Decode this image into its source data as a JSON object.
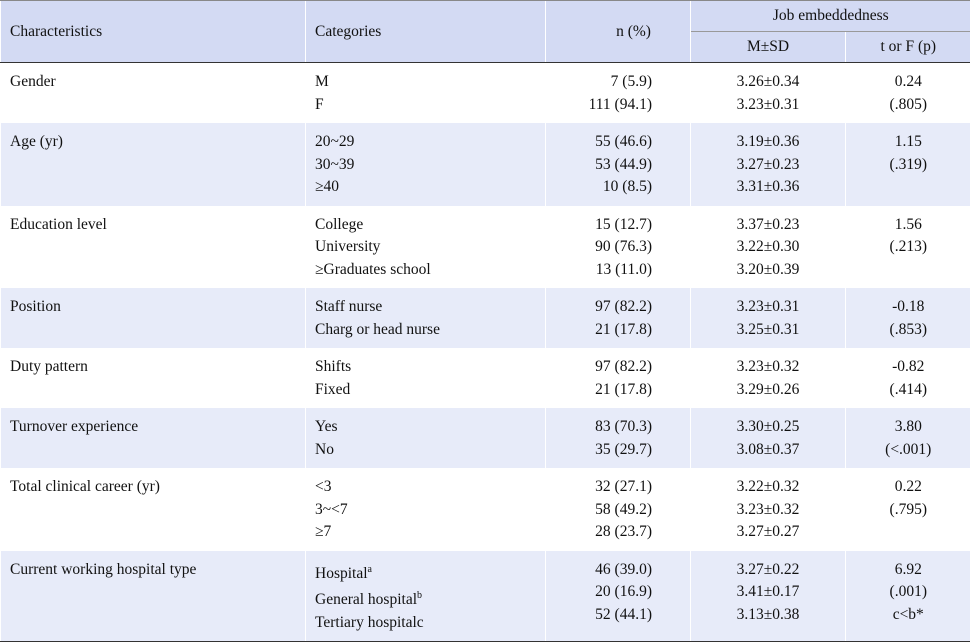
{
  "header": {
    "characteristics": "Characteristics",
    "categories": "Categories",
    "n": "n (%)",
    "job": "Job embeddedness",
    "msd": "M±SD",
    "stat": "t or F (p)"
  },
  "groups": [
    {
      "characteristic": "Gender",
      "items": [
        {
          "category": "M",
          "n": "7 (5.9)",
          "msd": "3.26±0.34"
        },
        {
          "category": "F",
          "n": "111 (94.1)",
          "msd": "3.23±0.31"
        }
      ],
      "stat": [
        "0.24",
        "(.805)"
      ]
    },
    {
      "characteristic": "Age (yr)",
      "items": [
        {
          "category": "20~29",
          "n": "55 (46.6)",
          "msd": "3.19±0.36"
        },
        {
          "category": "30~39",
          "n": "53 (44.9)",
          "msd": "3.27±0.23"
        },
        {
          "category": "≥40",
          "n": "10 (8.5)",
          "msd": "3.31±0.36"
        }
      ],
      "stat": [
        "1.15",
        "(.319)"
      ]
    },
    {
      "characteristic": "Education level",
      "items": [
        {
          "category": "College",
          "n": "15 (12.7)",
          "msd": "3.37±0.23"
        },
        {
          "category": "University",
          "n": "90 (76.3)",
          "msd": "3.22±0.30"
        },
        {
          "category": "≥Graduates school",
          "n": "13 (11.0)",
          "msd": "3.20±0.39"
        }
      ],
      "stat": [
        "1.56",
        "(.213)"
      ]
    },
    {
      "characteristic": "Position",
      "items": [
        {
          "category": "Staff nurse",
          "n": "97 (82.2)",
          "msd": "3.23±0.31"
        },
        {
          "category": "Charg or head nurse",
          "n": "21 (17.8)",
          "msd": "3.25±0.31"
        }
      ],
      "stat": [
        "-0.18",
        "(.853)"
      ]
    },
    {
      "characteristic": "Duty pattern",
      "items": [
        {
          "category": "Shifts",
          "n": "97 (82.2)",
          "msd": "3.23±0.32"
        },
        {
          "category": "Fixed",
          "n": "21 (17.8)",
          "msd": "3.29±0.26"
        }
      ],
      "stat": [
        "-0.82",
        "(.414)"
      ]
    },
    {
      "characteristic": "Turnover experience",
      "items": [
        {
          "category": "Yes",
          "n": "83 (70.3)",
          "msd": "3.30±0.25"
        },
        {
          "category": "No",
          "n": "35 (29.7)",
          "msd": "3.08±0.37"
        }
      ],
      "stat": [
        "3.80",
        "(<.001)"
      ]
    },
    {
      "characteristic": "Total clinical career (yr)",
      "items": [
        {
          "category": "<3",
          "n": "32 (27.1)",
          "msd": "3.22±0.32"
        },
        {
          "category": "3~<7",
          "n": "58 (49.2)",
          "msd": "3.23±0.32"
        },
        {
          "category": "≥7",
          "n": "28 (23.7)",
          "msd": "3.27±0.27"
        }
      ],
      "stat": [
        "0.22",
        "(.795)"
      ]
    },
    {
      "characteristic": "Current working hospital type",
      "items": [
        {
          "category": "Hospital",
          "sup": "a",
          "n": "46 (39.0)",
          "msd": "3.27±0.22"
        },
        {
          "category": "General hospital",
          "sup": "b",
          "n": "20 (16.9)",
          "msd": "3.41±0.17"
        },
        {
          "category": "Tertiary hospitalc",
          "n": "52 (44.1)",
          "msd": "3.13±0.38"
        }
      ],
      "stat": [
        "6.92",
        "(.001)",
        "c<b*"
      ]
    }
  ]
}
